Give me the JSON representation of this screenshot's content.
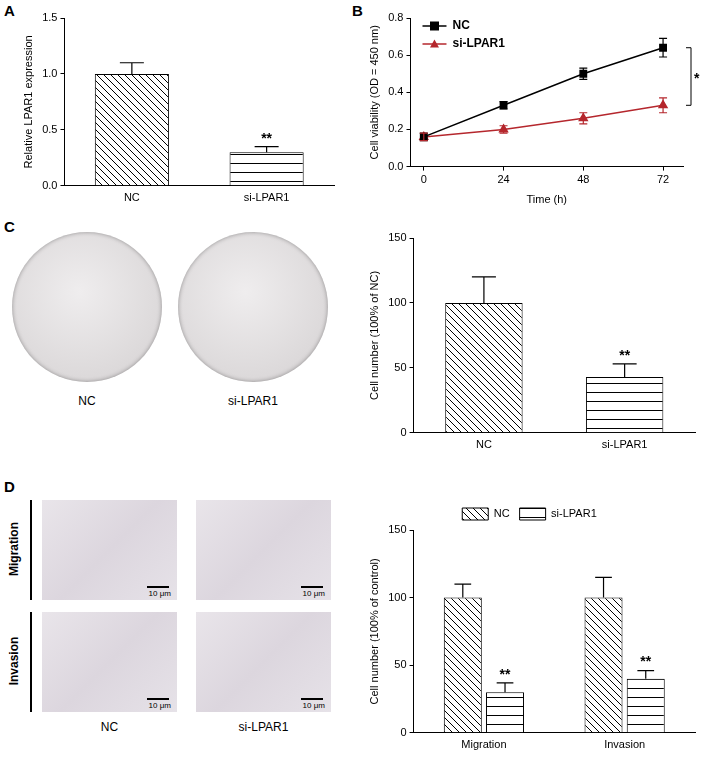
{
  "chart_data": [
    {
      "panel": "A",
      "type": "bar",
      "categories": [
        "NC",
        "si-LPAR1"
      ],
      "values": [
        1.0,
        0.3
      ],
      "errors": [
        0.1,
        0.05
      ],
      "color": "#000000",
      "ylabel": "Relative LPAR1 expression",
      "ylim": [
        0,
        1.5
      ],
      "yticks": [
        {
          "value": 0,
          "label": "0.0"
        },
        0.5,
        {
          "value": 1,
          "label": "1.0"
        },
        1.5
      ],
      "grid": false,
      "annotations": [
        {
          "category": "si-LPAR1",
          "text": "**"
        }
      ]
    },
    {
      "panel": "B",
      "type": "line",
      "x": [
        0,
        24,
        48,
        72
      ],
      "xlabel": "Time (h)",
      "ylabel": "Cell viability (OD = 450 nm)",
      "xlim": [
        -4,
        78
      ],
      "xticks": [
        0,
        24,
        48,
        72
      ],
      "ylim": [
        0,
        0.8
      ],
      "yticks": [
        {
          "value": 0,
          "label": "0.0"
        },
        0.2,
        0.4,
        0.6,
        0.8
      ],
      "grid": false,
      "legend": "upper left",
      "series": [
        {
          "name": "NC",
          "color": "#000000",
          "marker": "square",
          "values": [
            0.16,
            0.33,
            0.5,
            0.64
          ],
          "errors": [
            0.02,
            0.02,
            0.03,
            0.05
          ]
        },
        {
          "name": "si-LPAR1",
          "color": "#b5272d",
          "marker": "triangle",
          "values": [
            0.16,
            0.2,
            0.26,
            0.33
          ],
          "errors": [
            0.02,
            0.02,
            0.03,
            0.04
          ]
        }
      ],
      "annotations": [
        {
          "x": 72,
          "text": "*"
        }
      ]
    },
    {
      "panel": "C",
      "type": "bar",
      "categories": [
        "NC",
        "si-LPAR1"
      ],
      "values": [
        100,
        43
      ],
      "errors": [
        20,
        10
      ],
      "color": "#000000",
      "ylabel": "Cell number (100% of NC)",
      "ylim": [
        0,
        150
      ],
      "yticks": [
        0,
        50,
        100,
        150
      ],
      "grid": false,
      "annotations": [
        {
          "category": "si-LPAR1",
          "text": "**"
        }
      ],
      "images": {
        "labels": [
          "NC",
          "si-LPAR1"
        ]
      }
    },
    {
      "panel": "D",
      "type": "bar",
      "categories": [
        "Migration",
        "Invasion"
      ],
      "ylabel": "Cell number (100% of control)",
      "ylim": [
        0,
        150
      ],
      "yticks": [
        0,
        50,
        100,
        150
      ],
      "grid": false,
      "legend": "top",
      "series": [
        {
          "name": "NC",
          "color": "#000000",
          "values": [
            100,
            100
          ],
          "errors": [
            10,
            15
          ]
        },
        {
          "name": "si-LPAR1",
          "color": "#000000",
          "values": [
            30,
            40
          ],
          "errors": [
            7,
            6
          ]
        }
      ],
      "annotations": [
        {
          "category": "Migration",
          "series": "si-LPAR1",
          "text": "**"
        },
        {
          "category": "Invasion",
          "series": "si-LPAR1",
          "text": "**"
        }
      ],
      "images": {
        "rows": [
          "Migration",
          "Invasion"
        ],
        "columns": [
          "NC",
          "si-LPAR1"
        ],
        "scale_bar": "10 μm"
      }
    }
  ]
}
